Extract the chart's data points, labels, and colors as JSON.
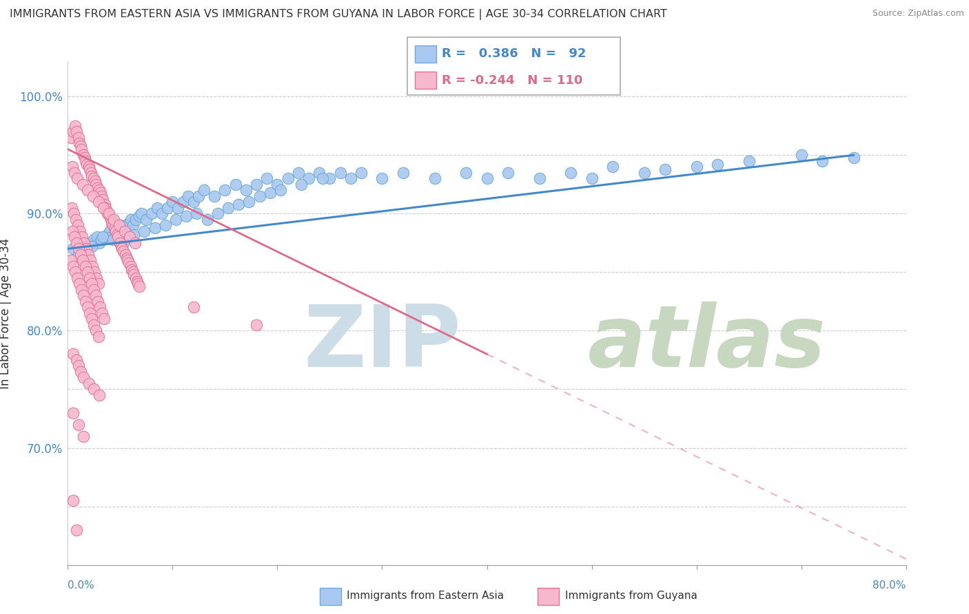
{
  "title": "IMMIGRANTS FROM EASTERN ASIA VS IMMIGRANTS FROM GUYANA IN LABOR FORCE | AGE 30-34 CORRELATION CHART",
  "source": "Source: ZipAtlas.com",
  "ylabel": "In Labor Force | Age 30-34",
  "xlim": [
    0.0,
    80.0
  ],
  "ylim": [
    60.0,
    103.0
  ],
  "y_ticks": [
    65.0,
    70.0,
    75.0,
    80.0,
    85.0,
    90.0,
    95.0,
    100.0
  ],
  "y_tick_labels": [
    "",
    "70.0%",
    "",
    "80.0%",
    "",
    "90.0%",
    "",
    "100.0%"
  ],
  "legend_blue_r": "0.386",
  "legend_blue_n": "92",
  "legend_pink_r": "-0.244",
  "legend_pink_n": "110",
  "blue_scatter_color": "#a8c8f0",
  "blue_edge_color": "#6aaad4",
  "pink_scatter_color": "#f5b8cc",
  "pink_edge_color": "#e87098",
  "blue_line_color": "#4488cc",
  "pink_line_color": "#e06888",
  "watermark_zip_color": "#ccdde8",
  "watermark_atlas_color": "#c8d8c0",
  "blue_scatter_x": [
    0.5,
    1.0,
    1.5,
    1.8,
    2.0,
    2.2,
    2.5,
    2.8,
    3.0,
    3.2,
    3.5,
    3.8,
    4.0,
    4.2,
    4.5,
    4.8,
    5.0,
    5.2,
    5.5,
    5.8,
    6.0,
    6.2,
    6.5,
    6.8,
    7.0,
    7.5,
    8.0,
    8.5,
    9.0,
    9.5,
    10.0,
    10.5,
    11.0,
    11.5,
    12.0,
    12.5,
    13.0,
    14.0,
    15.0,
    16.0,
    17.0,
    18.0,
    19.0,
    20.0,
    21.0,
    22.0,
    23.0,
    24.0,
    25.0,
    26.0,
    27.0,
    28.0,
    30.0,
    32.0,
    35.0,
    38.0,
    40.0,
    42.0,
    45.0,
    48.0,
    50.0,
    52.0,
    55.0,
    57.0,
    60.0,
    62.0,
    65.0,
    70.0,
    72.0,
    75.0,
    1.2,
    2.3,
    3.3,
    4.3,
    5.3,
    6.3,
    7.3,
    8.3,
    9.3,
    10.3,
    11.3,
    12.3,
    13.3,
    14.3,
    15.3,
    16.3,
    17.3,
    18.3,
    19.3,
    20.3,
    22.3,
    24.3
  ],
  "blue_scatter_y": [
    87.0,
    86.5,
    87.5,
    87.0,
    87.2,
    87.5,
    87.8,
    88.0,
    87.5,
    87.8,
    88.0,
    88.2,
    88.5,
    88.0,
    88.5,
    88.8,
    89.0,
    88.5,
    89.0,
    89.2,
    89.5,
    89.0,
    89.5,
    89.8,
    90.0,
    89.5,
    90.0,
    90.5,
    90.0,
    90.5,
    91.0,
    90.5,
    91.0,
    91.5,
    91.0,
    91.5,
    92.0,
    91.5,
    92.0,
    92.5,
    92.0,
    92.5,
    93.0,
    92.5,
    93.0,
    93.5,
    93.0,
    93.5,
    93.0,
    93.5,
    93.0,
    93.5,
    93.0,
    93.5,
    93.0,
    93.5,
    93.0,
    93.5,
    93.0,
    93.5,
    93.0,
    94.0,
    93.5,
    93.8,
    94.0,
    94.2,
    94.5,
    95.0,
    94.5,
    94.8,
    86.2,
    87.2,
    88.0,
    87.8,
    87.5,
    88.2,
    88.5,
    88.8,
    89.0,
    89.5,
    89.8,
    90.0,
    89.5,
    90.0,
    90.5,
    90.8,
    91.0,
    91.5,
    91.8,
    92.0,
    92.5,
    93.0
  ],
  "pink_scatter_x": [
    0.3,
    0.5,
    0.7,
    0.8,
    1.0,
    1.1,
    1.2,
    1.3,
    1.5,
    1.6,
    1.7,
    1.8,
    2.0,
    2.1,
    2.2,
    2.3,
    2.5,
    2.6,
    2.7,
    2.8,
    3.0,
    3.1,
    3.2,
    3.3,
    3.5,
    3.6,
    3.7,
    3.8,
    4.0,
    4.1,
    4.2,
    4.3,
    4.5,
    4.6,
    4.7,
    4.8,
    5.0,
    5.1,
    5.2,
    5.3,
    5.5,
    5.6,
    5.7,
    5.8,
    6.0,
    6.1,
    6.2,
    6.3,
    6.5,
    6.6,
    6.7,
    6.8,
    0.4,
    0.6,
    0.9,
    1.4,
    1.9,
    2.4,
    2.9,
    3.4,
    3.9,
    4.4,
    4.9,
    5.4,
    5.9,
    6.4,
    0.35,
    0.55,
    0.75,
    0.95,
    1.15,
    1.35,
    1.55,
    1.75,
    1.95,
    2.15,
    2.35,
    2.55,
    2.75,
    2.95,
    0.45,
    0.65,
    0.85,
    1.05,
    1.25,
    1.45,
    1.65,
    1.85,
    2.05,
    2.25,
    2.45,
    2.65,
    2.85,
    3.05,
    3.25,
    3.45,
    0.3,
    0.5,
    0.7,
    0.9,
    1.1,
    1.3,
    1.5,
    1.7,
    1.9,
    2.1,
    2.3,
    2.5,
    2.7,
    2.9,
    12.0,
    18.0
  ],
  "pink_scatter_y": [
    96.5,
    97.0,
    97.5,
    97.0,
    96.5,
    96.0,
    95.8,
    95.5,
    95.0,
    94.8,
    94.5,
    94.2,
    94.0,
    93.8,
    93.5,
    93.2,
    93.0,
    92.8,
    92.5,
    92.2,
    92.0,
    91.8,
    91.5,
    91.2,
    90.8,
    90.5,
    90.2,
    90.0,
    89.8,
    89.5,
    89.2,
    89.0,
    88.8,
    88.5,
    88.2,
    88.0,
    87.5,
    87.2,
    87.0,
    86.8,
    86.5,
    86.2,
    86.0,
    85.8,
    85.5,
    85.2,
    85.0,
    84.8,
    84.5,
    84.2,
    84.0,
    83.8,
    94.0,
    93.5,
    93.0,
    92.5,
    92.0,
    91.5,
    91.0,
    90.5,
    90.0,
    89.5,
    89.0,
    88.5,
    88.0,
    87.5,
    90.5,
    90.0,
    89.5,
    89.0,
    88.5,
    88.0,
    87.5,
    87.0,
    86.5,
    86.0,
    85.5,
    85.0,
    84.5,
    84.0,
    88.5,
    88.0,
    87.5,
    87.0,
    86.5,
    86.0,
    85.5,
    85.0,
    84.5,
    84.0,
    83.5,
    83.0,
    82.5,
    82.0,
    81.5,
    81.0,
    86.0,
    85.5,
    85.0,
    84.5,
    84.0,
    83.5,
    83.0,
    82.5,
    82.0,
    81.5,
    81.0,
    80.5,
    80.0,
    79.5,
    82.0,
    80.5
  ],
  "pink_extra_x": [
    0.5,
    0.8,
    1.0,
    1.2,
    1.5,
    2.0,
    2.5,
    3.0,
    0.5,
    1.0,
    1.5,
    0.5,
    0.8
  ],
  "pink_extra_y": [
    78.0,
    77.5,
    77.0,
    76.5,
    76.0,
    75.5,
    75.0,
    74.5,
    73.0,
    72.0,
    71.0,
    65.5,
    63.0
  ]
}
